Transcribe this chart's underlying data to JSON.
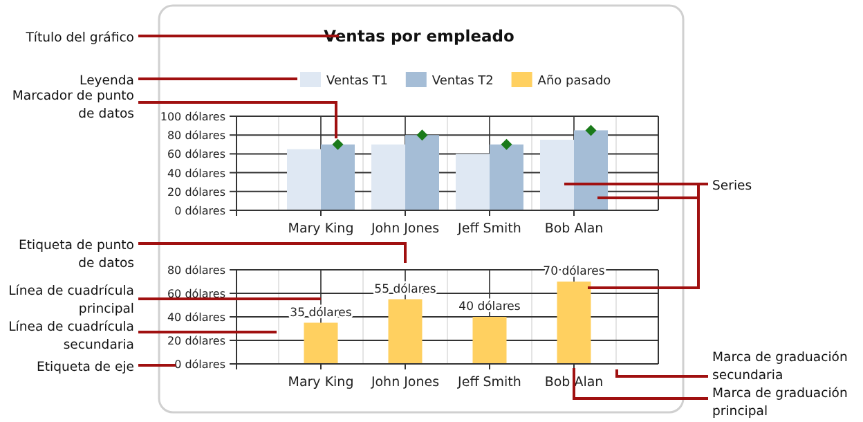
{
  "chart_data": [
    {
      "type": "bar",
      "title": "Ventas por empleado",
      "categories": [
        "Mary King",
        "John Jones",
        "Jeff Smith",
        "Bob Alan"
      ],
      "series": [
        {
          "name": "Ventas T1",
          "color": "#dfe8f3",
          "values": [
            65,
            70,
            60,
            75
          ]
        },
        {
          "name": "Ventas T2",
          "color": "#a5bdd6",
          "values": [
            70,
            80,
            70,
            85
          ]
        },
        {
          "type": "scatter",
          "color": "#1a7a1a",
          "marker": "diamond",
          "x": [
            "Mary King",
            "John Jones",
            "Jeff Smith",
            "Bob Alan"
          ],
          "values": [
            70,
            80,
            70,
            85
          ]
        }
      ],
      "ylim": [
        0,
        100
      ],
      "yticks": [
        {
          "value": 0,
          "label": "0 dólares"
        },
        {
          "value": 20,
          "label": "20 dólares"
        },
        {
          "value": 40,
          "label": "40 dólares"
        },
        {
          "value": 60,
          "label": "60 dólares"
        },
        {
          "value": 80,
          "label": "80 dólares"
        },
        {
          "value": 100,
          "label": "100 dólares"
        }
      ],
      "grid": true,
      "legend": "top",
      "annotations": [
        "Título del gráfico",
        "Leyenda",
        "Marcador de punto de datos",
        "Etiqueta de punto de datos",
        "Línea de cuadrícula principal",
        "Línea de cuadrícula secundaria",
        "Etiqueta de eje",
        "Series",
        "Marca de graduación secundaria",
        "Marca de graduación principal"
      ]
    },
    {
      "type": "bar",
      "categories": [
        "Mary King",
        "John Jones",
        "Jeff Smith",
        "Bob Alan"
      ],
      "series": [
        {
          "name": "Año pasado",
          "color": "#ffd060",
          "values": [
            35,
            55,
            40,
            70
          ],
          "value_labels": [
            "35 dólares",
            "55 dólares",
            "40 dólares",
            "70 dólares"
          ]
        }
      ],
      "ylim": [
        0,
        80
      ],
      "yticks": [
        {
          "value": 0,
          "label": "0 dólares"
        },
        {
          "value": 20,
          "label": "20 dólares"
        },
        {
          "value": 40,
          "label": "40 dólares"
        },
        {
          "value": 60,
          "label": "60 dólares"
        },
        {
          "value": 80,
          "label": "80 dólares"
        }
      ],
      "grid": true,
      "legend": "top"
    }
  ]
}
